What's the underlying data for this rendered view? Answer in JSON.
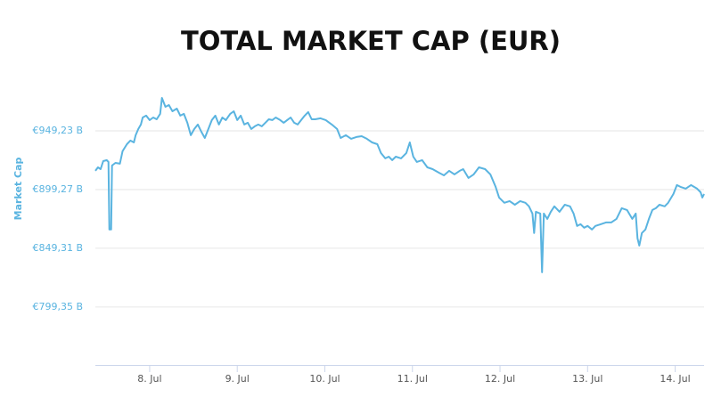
{
  "chart_data": {
    "type": "line",
    "title": "TOTAL MARKET CAP (EUR)",
    "ylabel": "Market Cap",
    "x": [
      7.38,
      7.41,
      7.44,
      7.47,
      7.51,
      7.53,
      7.54,
      7.56,
      7.57,
      7.61,
      7.66,
      7.69,
      7.74,
      7.78,
      7.82,
      7.84,
      7.87,
      7.9,
      7.92,
      7.96,
      8.0,
      8.04,
      8.08,
      8.12,
      8.14,
      8.18,
      8.22,
      8.26,
      8.31,
      8.35,
      8.39,
      8.43,
      8.47,
      8.51,
      8.55,
      8.59,
      8.63,
      8.67,
      8.71,
      8.75,
      8.79,
      8.83,
      8.87,
      8.92,
      8.96,
      9.0,
      9.04,
      9.08,
      9.12,
      9.16,
      9.2,
      9.24,
      9.28,
      9.32,
      9.36,
      9.4,
      9.44,
      9.49,
      9.53,
      9.57,
      9.61,
      9.65,
      9.69,
      9.73,
      9.77,
      9.81,
      9.85,
      9.89,
      9.95,
      10.01,
      10.08,
      10.14,
      10.18,
      10.24,
      10.3,
      10.36,
      10.42,
      10.48,
      10.54,
      10.6,
      10.64,
      10.69,
      10.73,
      10.77,
      10.81,
      10.87,
      10.93,
      10.97,
      11.01,
      11.05,
      11.11,
      11.17,
      11.23,
      11.3,
      11.36,
      11.42,
      11.48,
      11.54,
      11.58,
      11.64,
      11.7,
      11.76,
      11.83,
      11.89,
      11.95,
      11.99,
      12.05,
      12.11,
      12.17,
      12.23,
      12.29,
      12.33,
      12.37,
      12.39,
      12.41,
      12.46,
      12.48,
      12.5,
      12.54,
      12.58,
      12.62,
      12.68,
      12.74,
      12.8,
      12.84,
      12.88,
      12.92,
      12.96,
      13.0,
      13.05,
      13.09,
      13.15,
      13.21,
      13.27,
      13.33,
      13.39,
      13.45,
      13.51,
      13.55,
      13.57,
      13.59,
      13.62,
      13.66,
      13.7,
      13.74,
      13.78,
      13.82,
      13.88,
      13.92,
      13.98,
      14.02,
      14.06,
      14.12,
      14.18,
      14.25,
      14.29,
      14.31,
      14.33
    ],
    "series": [
      {
        "name": "Market Cap",
        "color": "#5ab4e0",
        "values": [
          915.2,
          918.2,
          916.7,
          923.5,
          924.3,
          922.8,
          865.3,
          865.3,
          919.8,
          922.0,
          921.3,
          931.9,
          937.9,
          941.0,
          939.4,
          945.5,
          950.8,
          954.6,
          960.6,
          962.2,
          958.4,
          960.6,
          959.1,
          963.7,
          977.3,
          969.7,
          971.2,
          965.9,
          968.2,
          962.2,
          963.7,
          956.1,
          945.5,
          950.8,
          954.6,
          948.5,
          943.2,
          950.8,
          958.4,
          962.2,
          954.6,
          960.6,
          958.4,
          963.7,
          965.9,
          958.4,
          962.2,
          954.6,
          956.1,
          950.8,
          953.1,
          954.6,
          953.1,
          956.1,
          959.1,
          958.4,
          960.6,
          958.4,
          956.1,
          958.4,
          960.6,
          956.1,
          954.6,
          958.4,
          962.2,
          965.2,
          959.1,
          959.1,
          959.9,
          958.4,
          954.6,
          950.8,
          943.2,
          945.5,
          942.5,
          944.0,
          944.7,
          942.5,
          939.4,
          937.9,
          930.4,
          925.8,
          927.3,
          924.3,
          927.3,
          925.8,
          930.4,
          939.4,
          927.3,
          922.8,
          924.3,
          918.2,
          916.7,
          913.7,
          911.4,
          915.2,
          912.2,
          915.2,
          916.7,
          909.2,
          912.2,
          918.2,
          916.7,
          912.2,
          901.6,
          892.5,
          888.0,
          889.5,
          886.4,
          889.5,
          888.0,
          885.0,
          878.9,
          862.3,
          880.4,
          878.9,
          828.9,
          878.9,
          874.3,
          880.4,
          885.0,
          880.4,
          886.4,
          885.0,
          878.9,
          868.3,
          869.8,
          866.8,
          868.3,
          865.3,
          868.3,
          869.8,
          871.3,
          871.3,
          874.3,
          883.4,
          881.9,
          874.3,
          878.9,
          857.7,
          851.6,
          862.3,
          865.3,
          874.3,
          881.9,
          883.4,
          886.4,
          885.0,
          888.0,
          895.5,
          903.1,
          901.6,
          900.1,
          903.1,
          900.1,
          897.0,
          892.5,
          895.5
        ]
      }
    ],
    "xlim": [
      7.38,
      14.33
    ],
    "xticks": [
      {
        "value": 8,
        "label": "8. Jul"
      },
      {
        "value": 9,
        "label": "9. Jul"
      },
      {
        "value": 10,
        "label": "10. Jul"
      },
      {
        "value": 11,
        "label": "11. Jul"
      },
      {
        "value": 12,
        "label": "12. Jul"
      },
      {
        "value": 13,
        "label": "13. Jul"
      },
      {
        "value": 14,
        "label": "14. Jul"
      }
    ],
    "ylim": [
      750,
      1000
    ],
    "yticks": [
      {
        "value": 799.35,
        "label": "€799,35 B"
      },
      {
        "value": 849.31,
        "label": "€849,31 B"
      },
      {
        "value": 899.27,
        "label": "€899,27 B"
      },
      {
        "value": 949.23,
        "label": "€949,23 B"
      }
    ],
    "grid": true
  }
}
